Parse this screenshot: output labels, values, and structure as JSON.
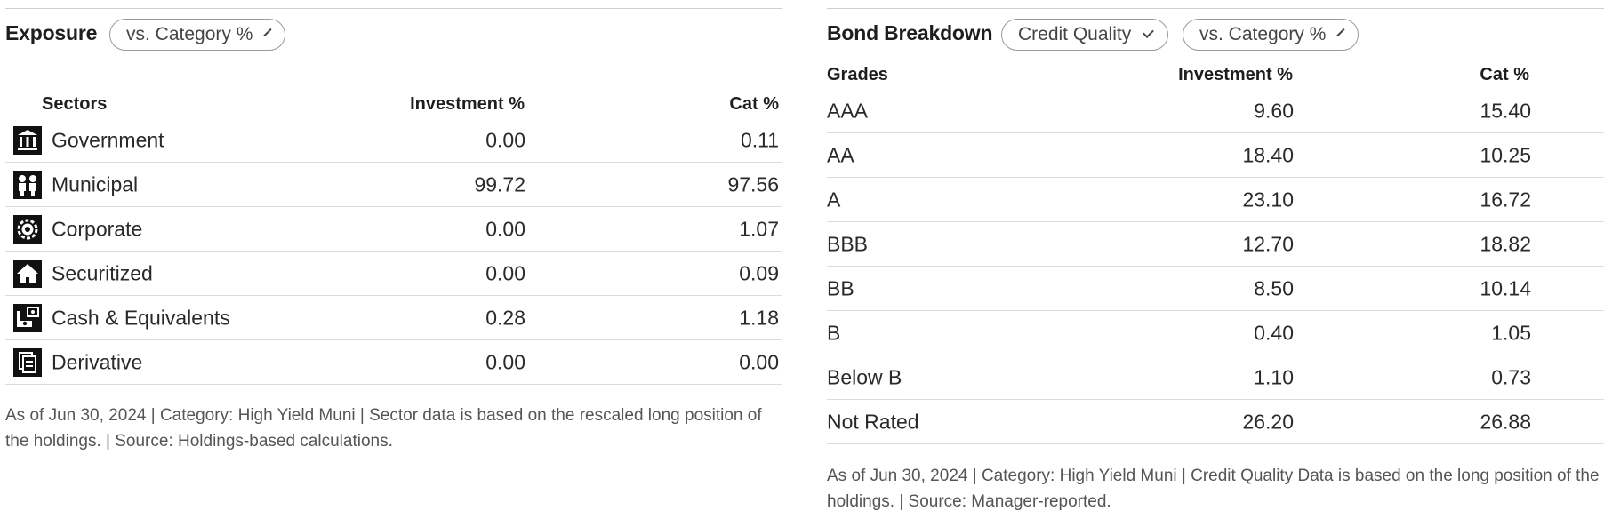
{
  "exposure": {
    "title": "Exposure",
    "compare_dropdown": "vs. Category %",
    "headers": {
      "name": "Sectors",
      "investment": "Investment %",
      "category": "Cat %"
    },
    "rows": [
      {
        "icon": "government-icon",
        "label": "Government",
        "investment": "0.00",
        "category": "0.11"
      },
      {
        "icon": "municipal-icon",
        "label": "Municipal",
        "investment": "99.72",
        "category": "97.56"
      },
      {
        "icon": "corporate-gear-icon",
        "label": "Corporate",
        "investment": "0.00",
        "category": "1.07"
      },
      {
        "icon": "securitized-house-icon",
        "label": "Securitized",
        "investment": "0.00",
        "category": "0.09"
      },
      {
        "icon": "cash-equivalents-icon",
        "label": "Cash & Equivalents",
        "investment": "0.28",
        "category": "1.18"
      },
      {
        "icon": "derivative-document-icon",
        "label": "Derivative",
        "investment": "0.00",
        "category": "0.00"
      }
    ],
    "footnote_line1": "As of Jun 30, 2024 | Category: High Yield Muni | Sector data is based on the rescaled long position of",
    "footnote_line2": "the holdings. | Source: Holdings-based calculations."
  },
  "bond": {
    "title": "Bond Breakdown",
    "breakdown_dropdown": "Credit Quality",
    "compare_dropdown": "vs. Category %",
    "headers": {
      "name": "Grades",
      "investment": "Investment %",
      "category": "Cat %"
    },
    "rows": [
      {
        "label": "AAA",
        "investment": "9.60",
        "category": "15.40"
      },
      {
        "label": "AA",
        "investment": "18.40",
        "category": "10.25"
      },
      {
        "label": "A",
        "investment": "23.10",
        "category": "16.72"
      },
      {
        "label": "BBB",
        "investment": "12.70",
        "category": "18.82"
      },
      {
        "label": "BB",
        "investment": "8.50",
        "category": "10.14"
      },
      {
        "label": "B",
        "investment": "0.40",
        "category": "1.05"
      },
      {
        "label": "Below B",
        "investment": "1.10",
        "category": "0.73"
      },
      {
        "label": "Not Rated",
        "investment": "26.20",
        "category": "26.88"
      }
    ],
    "footnote_line1": "As of Jun 30, 2024 | Category: High Yield Muni | Credit Quality Data is based on the long position of the",
    "footnote_line2": "holdings. | Source: Manager-reported."
  }
}
